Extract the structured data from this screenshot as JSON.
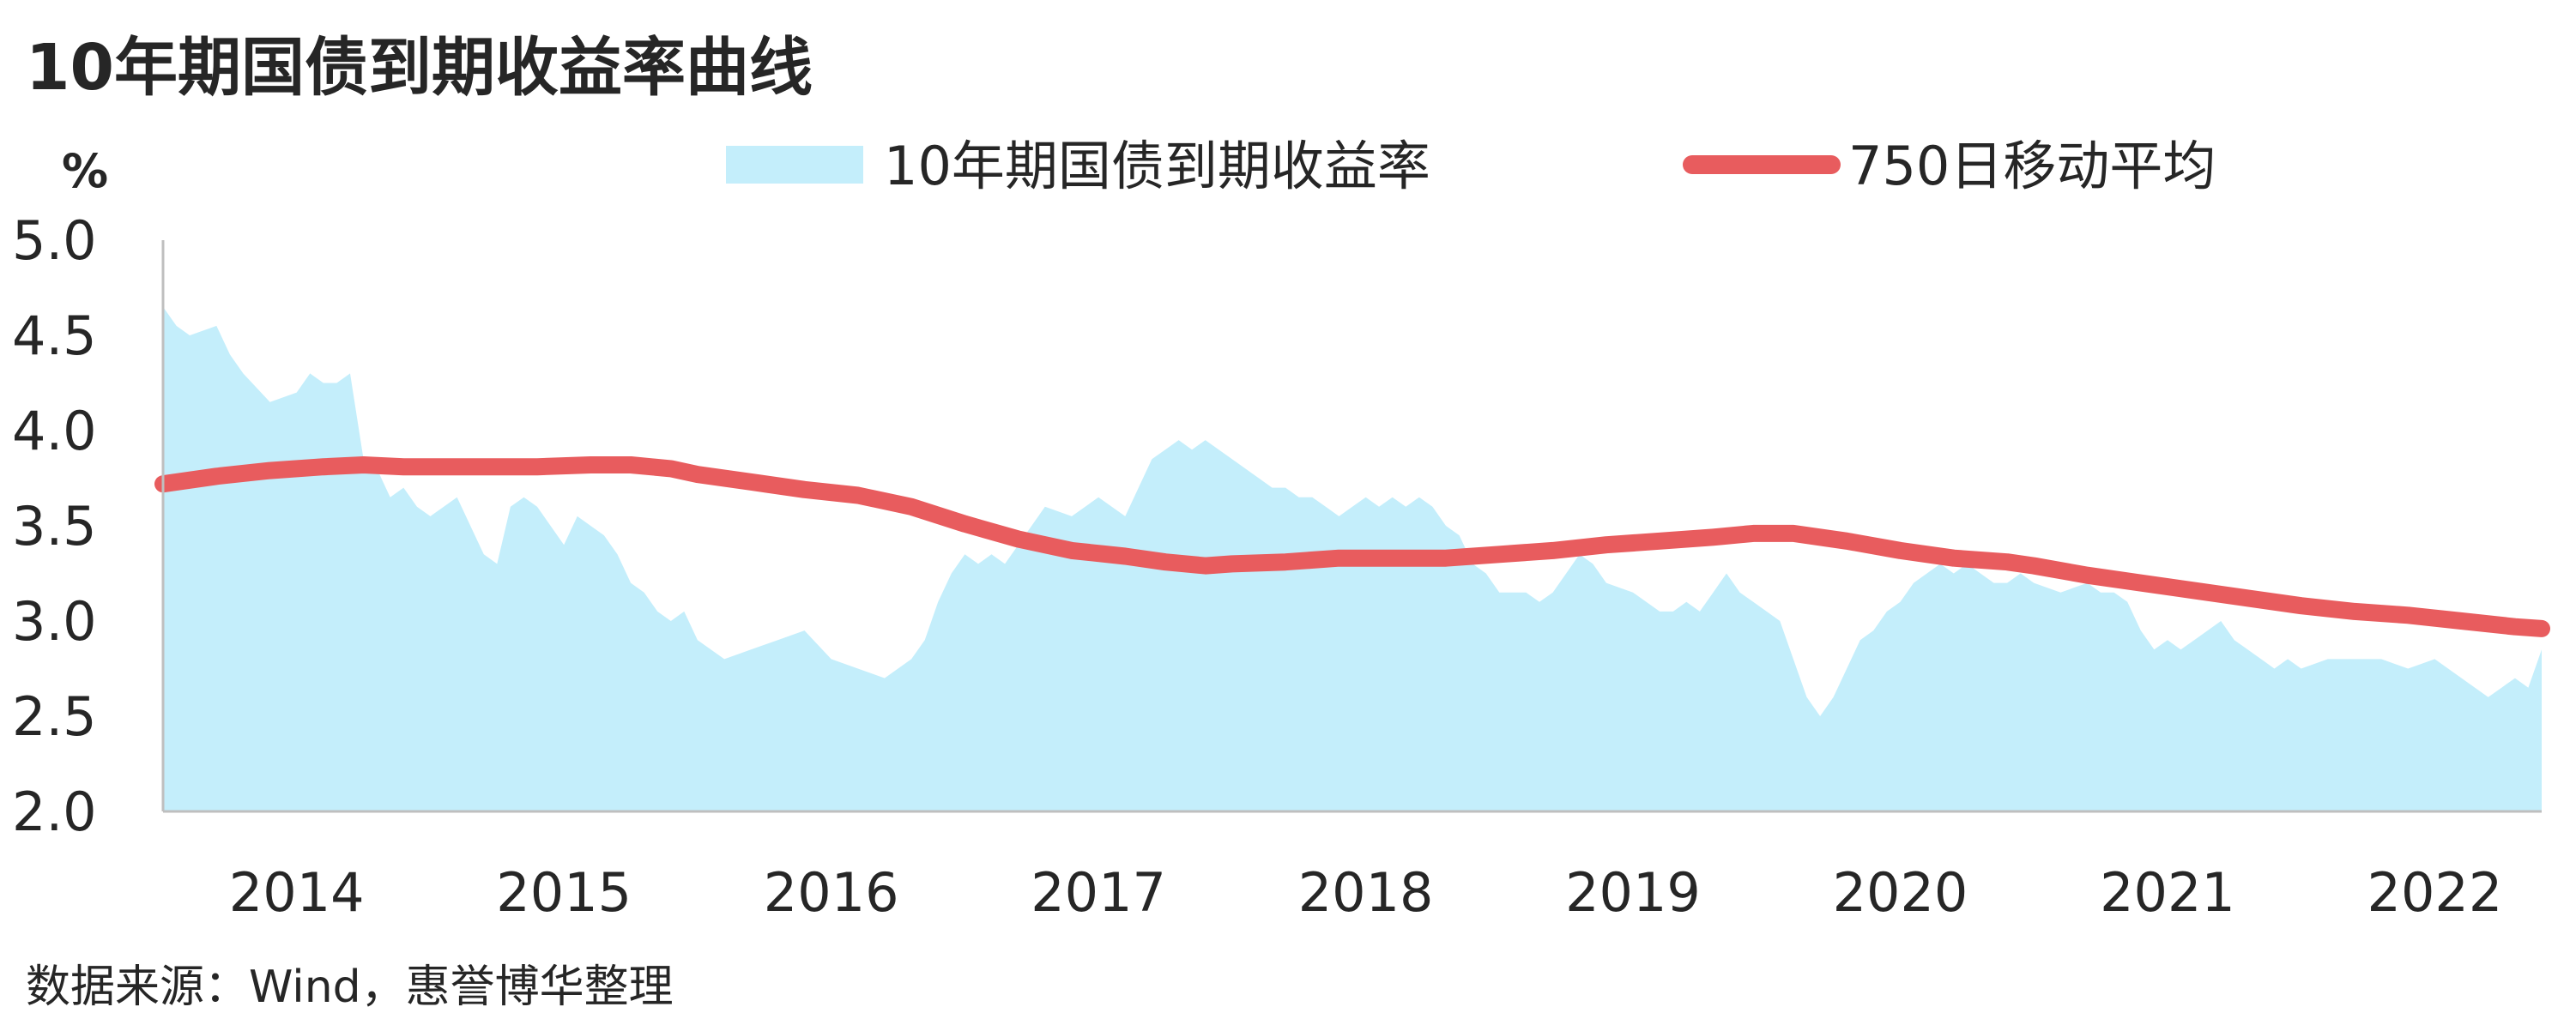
{
  "title": "10年期国债到期收益率曲线",
  "unit": "%",
  "source": "数据来源：Wind，惠誉博华整理",
  "colors": {
    "area": "#c4eefb",
    "line": "#e85c5e",
    "axis": "#bfbfbf",
    "text": "#262626"
  },
  "chart_data": {
    "type": "area",
    "xlim": [
      2014.0,
      2022.9
    ],
    "ylim": [
      2.0,
      5.0
    ],
    "y_ticks": [
      "5.0",
      "4.5",
      "4.0",
      "3.5",
      "3.0",
      "2.5",
      "2.0"
    ],
    "x_ticks": [
      "2014",
      "2015",
      "2016",
      "2017",
      "2018",
      "2019",
      "2020",
      "2021",
      "2022"
    ],
    "grid": false,
    "legend_position": "top",
    "series": [
      {
        "name": "10年期国债到期收益率",
        "type": "area",
        "color": "#c4eefb",
        "x": [
          2014.0,
          2014.05,
          2014.1,
          2014.2,
          2014.25,
          2014.3,
          2014.4,
          2014.5,
          2014.55,
          2014.6,
          2014.65,
          2014.7,
          2014.75,
          2014.8,
          2014.85,
          2014.9,
          2014.95,
          2015.0,
          2015.1,
          2015.2,
          2015.25,
          2015.3,
          2015.35,
          2015.4,
          2015.45,
          2015.5,
          2015.55,
          2015.6,
          2015.65,
          2015.7,
          2015.75,
          2015.8,
          2015.85,
          2015.9,
          2015.95,
          2016.0,
          2016.1,
          2016.2,
          2016.3,
          2016.4,
          2016.5,
          2016.6,
          2016.7,
          2016.75,
          2016.8,
          2016.85,
          2016.9,
          2016.95,
          2017.0,
          2017.05,
          2017.1,
          2017.15,
          2017.2,
          2017.3,
          2017.4,
          2017.5,
          2017.6,
          2017.7,
          2017.75,
          2017.8,
          2017.85,
          2017.9,
          2017.95,
          2018.0,
          2018.05,
          2018.1,
          2018.15,
          2018.2,
          2018.25,
          2018.3,
          2018.35,
          2018.4,
          2018.45,
          2018.5,
          2018.55,
          2018.6,
          2018.65,
          2018.7,
          2018.75,
          2018.8,
          2018.85,
          2018.9,
          2018.95,
          2019.0,
          2019.1,
          2019.15,
          2019.2,
          2019.25,
          2019.3,
          2019.35,
          2019.4,
          2019.5,
          2019.6,
          2019.65,
          2019.7,
          2019.75,
          2019.8,
          2019.85,
          2019.9,
          2019.95,
          2020.0,
          2020.05,
          2020.1,
          2020.15,
          2020.2,
          2020.25,
          2020.3,
          2020.35,
          2020.4,
          2020.45,
          2020.5,
          2020.55,
          2020.6,
          2020.65,
          2020.7,
          2020.75,
          2020.8,
          2020.85,
          2020.9,
          2020.95,
          2021.0,
          2021.1,
          2021.2,
          2021.25,
          2021.3,
          2021.35,
          2021.4,
          2021.45,
          2021.5,
          2021.55,
          2021.6,
          2021.65,
          2021.7,
          2021.75,
          2021.8,
          2021.85,
          2021.9,
          2021.95,
          2022.0,
          2022.1,
          2022.2,
          2022.3,
          2022.4,
          2022.5,
          2022.6,
          2022.7,
          2022.75,
          2022.8,
          2022.85,
          2022.9
        ],
        "values": [
          4.65,
          4.55,
          4.5,
          4.55,
          4.4,
          4.3,
          4.15,
          4.2,
          4.3,
          4.25,
          4.25,
          4.3,
          3.85,
          3.8,
          3.65,
          3.7,
          3.6,
          3.55,
          3.65,
          3.35,
          3.3,
          3.6,
          3.65,
          3.6,
          3.5,
          3.4,
          3.55,
          3.5,
          3.45,
          3.35,
          3.2,
          3.15,
          3.05,
          3.0,
          3.05,
          2.9,
          2.8,
          2.85,
          2.9,
          2.95,
          2.8,
          2.75,
          2.7,
          2.75,
          2.8,
          2.9,
          3.1,
          3.25,
          3.35,
          3.3,
          3.35,
          3.3,
          3.4,
          3.6,
          3.55,
          3.65,
          3.55,
          3.85,
          3.9,
          3.95,
          3.9,
          3.95,
          3.9,
          3.85,
          3.8,
          3.75,
          3.7,
          3.7,
          3.65,
          3.65,
          3.6,
          3.55,
          3.6,
          3.65,
          3.6,
          3.65,
          3.6,
          3.65,
          3.6,
          3.5,
          3.45,
          3.3,
          3.25,
          3.15,
          3.15,
          3.1,
          3.15,
          3.25,
          3.35,
          3.3,
          3.2,
          3.15,
          3.05,
          3.05,
          3.1,
          3.05,
          3.15,
          3.25,
          3.15,
          3.1,
          3.05,
          3.0,
          2.8,
          2.6,
          2.5,
          2.6,
          2.75,
          2.9,
          2.95,
          3.05,
          3.1,
          3.2,
          3.25,
          3.3,
          3.25,
          3.3,
          3.25,
          3.2,
          3.2,
          3.25,
          3.2,
          3.15,
          3.2,
          3.15,
          3.15,
          3.1,
          2.95,
          2.85,
          2.9,
          2.85,
          2.9,
          2.95,
          3.0,
          2.9,
          2.85,
          2.8,
          2.75,
          2.8,
          2.75,
          2.8,
          2.8,
          2.8,
          2.75,
          2.8,
          2.7,
          2.6,
          2.65,
          2.7,
          2.65,
          2.85
        ]
      },
      {
        "name": "750日移动平均",
        "type": "line",
        "color": "#e85c5e",
        "x": [
          2014.0,
          2014.2,
          2014.4,
          2014.6,
          2014.75,
          2014.9,
          2015.0,
          2015.2,
          2015.4,
          2015.6,
          2015.75,
          2015.9,
          2016.0,
          2016.2,
          2016.4,
          2016.6,
          2016.8,
          2017.0,
          2017.2,
          2017.4,
          2017.6,
          2017.75,
          2017.9,
          2018.0,
          2018.2,
          2018.4,
          2018.6,
          2018.8,
          2019.0,
          2019.2,
          2019.4,
          2019.6,
          2019.8,
          2019.95,
          2020.1,
          2020.3,
          2020.5,
          2020.7,
          2020.9,
          2021.0,
          2021.2,
          2021.4,
          2021.6,
          2021.8,
          2022.0,
          2022.2,
          2022.4,
          2022.6,
          2022.8,
          2022.9
        ],
        "values": [
          3.72,
          3.76,
          3.79,
          3.81,
          3.82,
          3.81,
          3.81,
          3.81,
          3.81,
          3.82,
          3.82,
          3.8,
          3.77,
          3.73,
          3.69,
          3.66,
          3.6,
          3.51,
          3.43,
          3.37,
          3.34,
          3.31,
          3.29,
          3.3,
          3.31,
          3.33,
          3.33,
          3.33,
          3.35,
          3.37,
          3.4,
          3.42,
          3.44,
          3.46,
          3.46,
          3.42,
          3.37,
          3.33,
          3.31,
          3.29,
          3.24,
          3.2,
          3.16,
          3.12,
          3.08,
          3.05,
          3.03,
          3.0,
          2.97,
          2.96
        ]
      }
    ]
  }
}
